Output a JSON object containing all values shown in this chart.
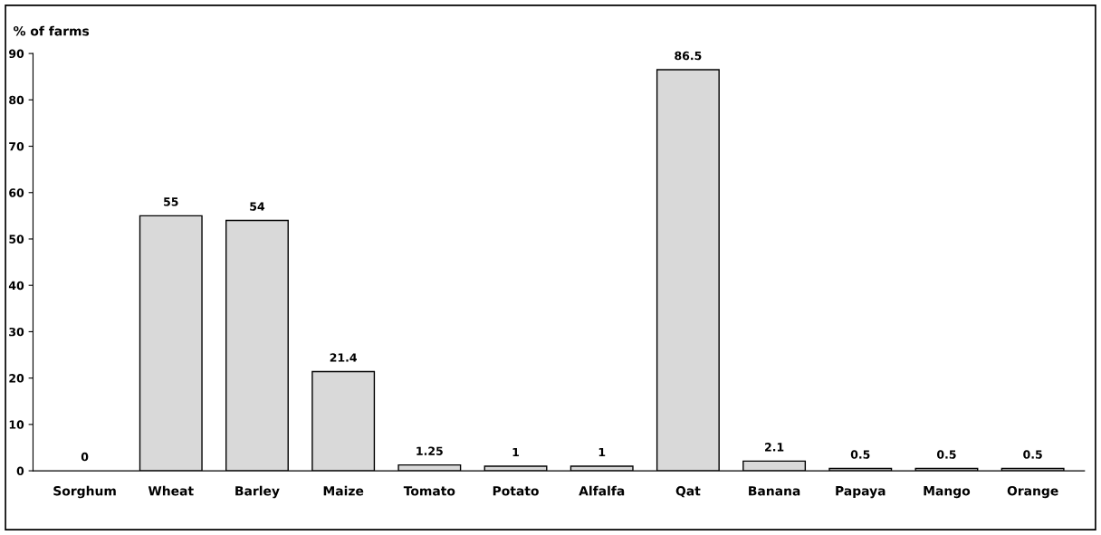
{
  "chart_data": {
    "type": "bar",
    "ylabel": "% of farms",
    "categories": [
      "Sorghum",
      "Wheat",
      "Barley",
      "Maize",
      "Tomato",
      "Potato",
      "Alfalfa",
      "Qat",
      "Banana",
      "Papaya",
      "Mango",
      "Orange"
    ],
    "values": [
      0,
      55,
      54,
      21.4,
      1.25,
      1,
      1,
      86.5,
      2.1,
      0.5,
      0.5,
      0.5
    ],
    "color": "#d9d9d9",
    "ylim": [
      0,
      90
    ],
    "yticks": [
      0,
      10,
      20,
      30,
      40,
      50,
      60,
      70,
      80,
      90
    ],
    "grid": false,
    "data_labels": true
  }
}
